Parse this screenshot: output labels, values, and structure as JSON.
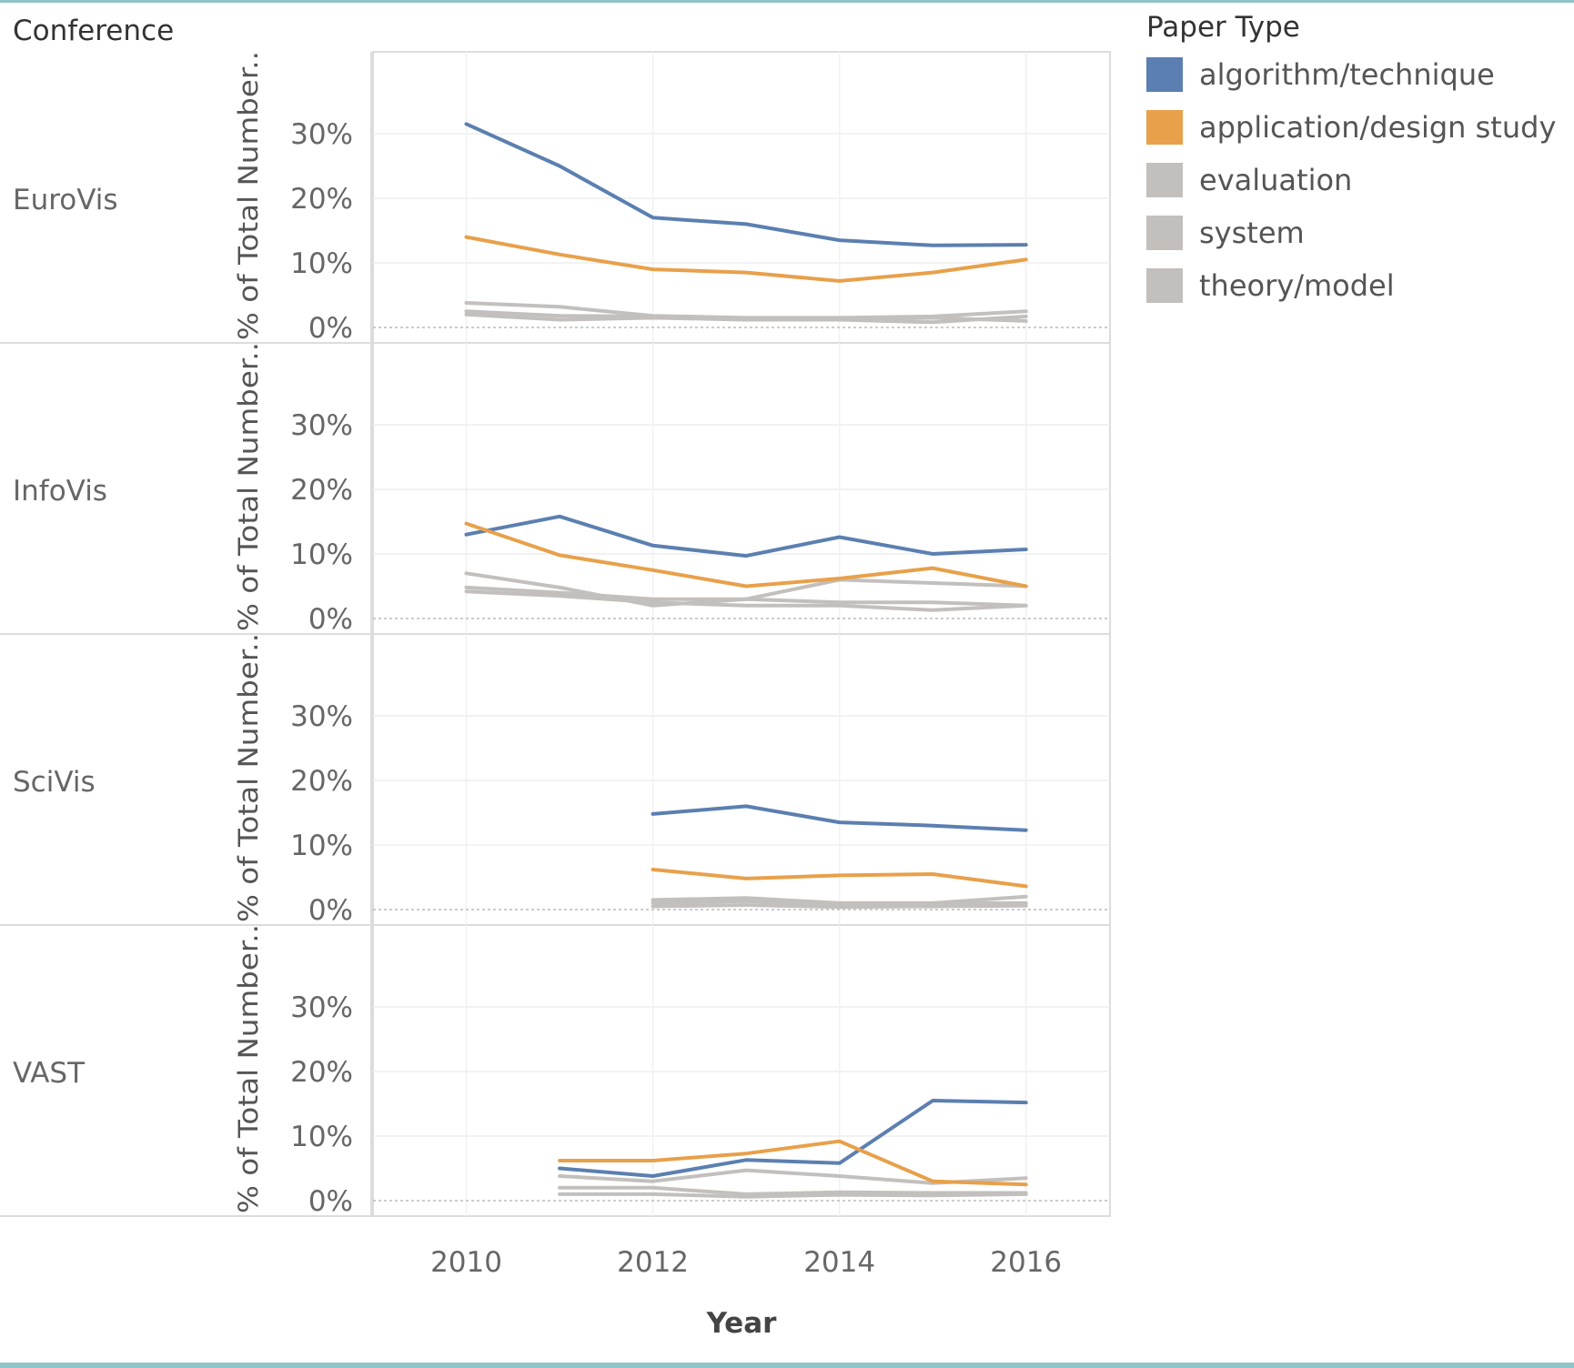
{
  "chart_data": {
    "type": "line",
    "facet_header": "Conference",
    "xlabel": "Year",
    "ylabel": "% of Total Number..",
    "ylim": [
      0,
      30
    ],
    "yticks": [
      "30%",
      "20%",
      "10%",
      "0%"
    ],
    "ytick_values": [
      30,
      20,
      10,
      0
    ],
    "xticks": [
      "2010",
      "2012",
      "2014",
      "2016"
    ],
    "xtick_values": [
      2010,
      2012,
      2014,
      2016
    ],
    "xlim": [
      2009,
      2016.9
    ],
    "grid": true,
    "legend": {
      "title": "Paper Type",
      "placement": "right",
      "items": [
        {
          "label": "algorithm/technique",
          "color": "#5b7fb0"
        },
        {
          "label": "application/design study",
          "color": "#e8a04a"
        },
        {
          "label": "evaluation",
          "color": "#c2bfbd"
        },
        {
          "label": "system",
          "color": "#c2bfbd"
        },
        {
          "label": "theory/model",
          "color": "#c2bfbd"
        }
      ]
    },
    "panels": [
      {
        "name": "EuroVis",
        "series": [
          {
            "name": "algorithm/technique",
            "color": "#5b7fb0",
            "x": [
              2010,
              2011,
              2012,
              2013,
              2014,
              2015,
              2016
            ],
            "y": [
              31.5,
              25,
              17,
              16,
              13.5,
              12.7,
              12.8
            ]
          },
          {
            "name": "application/design study",
            "color": "#e8a04a",
            "x": [
              2010,
              2011,
              2012,
              2013,
              2014,
              2015,
              2016
            ],
            "y": [
              14,
              11.3,
              9,
              8.5,
              7.2,
              8.5,
              10.5
            ]
          },
          {
            "name": "evaluation",
            "color": "#c2bfbd",
            "x": [
              2010,
              2011,
              2012,
              2013,
              2014,
              2015,
              2016
            ],
            "y": [
              3.8,
              3.2,
              1.8,
              1.5,
              1.5,
              1.7,
              2.5
            ]
          },
          {
            "name": "system",
            "color": "#c2bfbd",
            "x": [
              2010,
              2011,
              2012,
              2013,
              2014,
              2015,
              2016
            ],
            "y": [
              2.5,
              1.8,
              1.7,
              1.2,
              1.2,
              0.8,
              1.7
            ]
          },
          {
            "name": "theory/model",
            "color": "#c2bfbd",
            "x": [
              2010,
              2011,
              2012,
              2013,
              2014,
              2015,
              2016
            ],
            "y": [
              2,
              1.2,
              1.5,
              1.2,
              1.2,
              1.5,
              1
            ]
          }
        ]
      },
      {
        "name": "InfoVis",
        "series": [
          {
            "name": "algorithm/technique",
            "color": "#5b7fb0",
            "x": [
              2010,
              2011,
              2012,
              2013,
              2014,
              2015,
              2016
            ],
            "y": [
              13,
              15.8,
              11.3,
              9.7,
              12.6,
              10,
              10.7
            ]
          },
          {
            "name": "application/design study",
            "color": "#e8a04a",
            "x": [
              2010,
              2011,
              2012,
              2013,
              2014,
              2015,
              2016
            ],
            "y": [
              14.7,
              9.8,
              7.5,
              5,
              6.2,
              7.8,
              5
            ]
          },
          {
            "name": "evaluation",
            "color": "#c2bfbd",
            "x": [
              2010,
              2011,
              2012,
              2013,
              2014,
              2015,
              2016
            ],
            "y": [
              7,
              4.8,
              2,
              3,
              6,
              5.5,
              5
            ]
          },
          {
            "name": "system",
            "color": "#c2bfbd",
            "x": [
              2010,
              2011,
              2012,
              2013,
              2014,
              2015,
              2016
            ],
            "y": [
              4.8,
              4,
              3,
              3,
              2.5,
              2.5,
              2
            ]
          },
          {
            "name": "theory/model",
            "color": "#c2bfbd",
            "x": [
              2010,
              2011,
              2012,
              2013,
              2014,
              2015,
              2016
            ],
            "y": [
              4.2,
              3.5,
              2.5,
              2,
              2,
              1.3,
              2
            ]
          }
        ]
      },
      {
        "name": "SciVis",
        "series": [
          {
            "name": "algorithm/technique",
            "color": "#5b7fb0",
            "x": [
              2012,
              2013,
              2014,
              2015,
              2016
            ],
            "y": [
              14.8,
              16,
              13.5,
              13,
              12.3
            ]
          },
          {
            "name": "application/design study",
            "color": "#e8a04a",
            "x": [
              2012,
              2013,
              2014,
              2015,
              2016
            ],
            "y": [
              6.2,
              4.8,
              5.3,
              5.5,
              3.6
            ]
          },
          {
            "name": "evaluation",
            "color": "#c2bfbd",
            "x": [
              2012,
              2013,
              2014,
              2015,
              2016
            ],
            "y": [
              1.5,
              1.8,
              1,
              1,
              2
            ]
          },
          {
            "name": "system",
            "color": "#c2bfbd",
            "x": [
              2012,
              2013,
              2014,
              2015,
              2016
            ],
            "y": [
              1,
              1.3,
              0.7,
              1,
              1
            ]
          },
          {
            "name": "theory/model",
            "color": "#c2bfbd",
            "x": [
              2012,
              2013,
              2014,
              2015,
              2016
            ],
            "y": [
              0.5,
              0.7,
              0.4,
              0.5,
              0.6
            ]
          }
        ]
      },
      {
        "name": "VAST",
        "series": [
          {
            "name": "algorithm/technique",
            "color": "#5b7fb0",
            "x": [
              2011,
              2012,
              2013,
              2014,
              2015,
              2016
            ],
            "y": [
              5,
              3.8,
              6.3,
              5.8,
              15.5,
              15.2
            ]
          },
          {
            "name": "application/design study",
            "color": "#e8a04a",
            "x": [
              2011,
              2012,
              2013,
              2014,
              2015,
              2016
            ],
            "y": [
              6.2,
              6.2,
              7.3,
              9.2,
              3,
              2.5
            ]
          },
          {
            "name": "evaluation",
            "color": "#c2bfbd",
            "x": [
              2011,
              2012,
              2013,
              2014,
              2015,
              2016
            ],
            "y": [
              3.8,
              3,
              4.7,
              3.8,
              2.7,
              3.5
            ]
          },
          {
            "name": "system",
            "color": "#c2bfbd",
            "x": [
              2011,
              2012,
              2013,
              2014,
              2015,
              2016
            ],
            "y": [
              2,
              2,
              1,
              1.3,
              1.2,
              1.2
            ]
          },
          {
            "name": "theory/model",
            "color": "#c2bfbd",
            "x": [
              2011,
              2012,
              2013,
              2014,
              2015,
              2016
            ],
            "y": [
              1,
              1,
              0.6,
              0.9,
              0.8,
              1
            ]
          }
        ]
      }
    ]
  }
}
